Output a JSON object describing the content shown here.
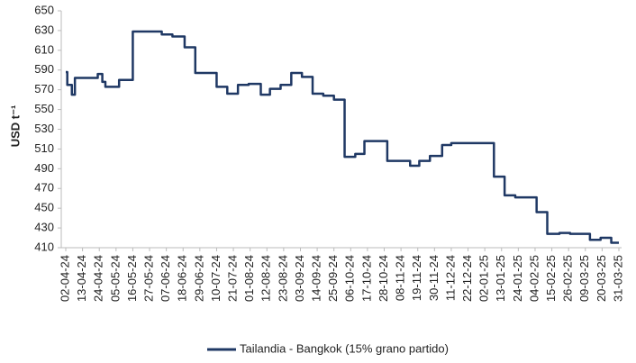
{
  "chart_data": {
    "type": "line",
    "drawstyle": "steps-post",
    "ylabel": "USD t⁻¹",
    "x": [
      "02-04-24",
      "03-04-24",
      "06-04-24",
      "08-04-24",
      "23-04-24",
      "26-04-24",
      "28-04-24",
      "07-05-24",
      "16-05-24",
      "04-06-24",
      "11-06-24",
      "19-06-24",
      "26-06-24",
      "10-07-24",
      "17-07-24",
      "24-07-24",
      "31-07-24",
      "08-08-24",
      "14-08-24",
      "21-08-24",
      "28-08-24",
      "04-09-24",
      "11-09-24",
      "18-09-24",
      "25-09-24",
      "02-10-24",
      "09-10-24",
      "15-10-24",
      "30-10-24",
      "14-11-24",
      "20-11-24",
      "27-11-24",
      "05-12-24",
      "11-12-24",
      "08-01-25",
      "15-01-25",
      "22-01-25",
      "05-02-25",
      "12-02-25",
      "20-02-25",
      "27-02-25",
      "12-03-25",
      "19-03-25",
      "26-03-25",
      "31-03-25"
    ],
    "series": [
      {
        "name": "Tailandia - Bangkok (15% grano partido)",
        "color": "#1f3864",
        "values": [
          588,
          575,
          565,
          582,
          586,
          578,
          573,
          580,
          629,
          626,
          624,
          613,
          587,
          573,
          566,
          575,
          576,
          565,
          571,
          575,
          587,
          583,
          566,
          564,
          560,
          502,
          505,
          518,
          498,
          493,
          498,
          503,
          514,
          516,
          482,
          463,
          461,
          446,
          424,
          425,
          424,
          418,
          420,
          415,
          415
        ]
      }
    ],
    "xlim": [
      "02-04-24",
      "31-03-25"
    ],
    "xticks": [
      "02-04-24",
      "13-04-24",
      "24-04-24",
      "05-05-24",
      "16-05-24",
      "27-05-24",
      "07-06-24",
      "18-06-24",
      "29-06-24",
      "10-07-24",
      "21-07-24",
      "01-08-24",
      "12-08-24",
      "23-08-24",
      "03-09-24",
      "14-09-24",
      "25-09-24",
      "06-10-24",
      "17-10-24",
      "28-10-24",
      "08-11-24",
      "19-11-24",
      "30-11-24",
      "11-12-24",
      "22-12-24",
      "02-01-25",
      "13-01-25",
      "24-01-25",
      "04-02-25",
      "15-02-25",
      "26-02-25",
      "09-03-25",
      "20-03-25",
      "31-03-25"
    ],
    "ylim": [
      410,
      650
    ],
    "yticks": [
      410,
      430,
      450,
      470,
      490,
      510,
      530,
      550,
      570,
      590,
      610,
      630,
      650
    ],
    "grid": false,
    "legend": "bottom"
  }
}
